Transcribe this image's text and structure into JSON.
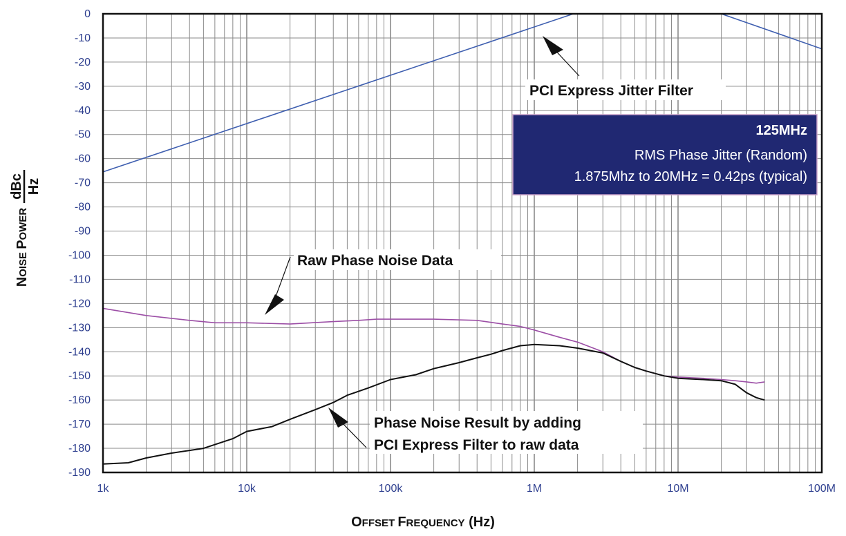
{
  "chart_data": {
    "type": "line",
    "xscale": "log",
    "xlim": [
      1000,
      100000000
    ],
    "ylim": [
      -190,
      0
    ],
    "grid": true,
    "xlabel_parts": [
      "O",
      "FFSET ",
      "F",
      "REQUENCY",
      " (Hz)"
    ],
    "ylabel_parts": [
      "N",
      "OISE ",
      "P",
      "OWER"
    ],
    "yunit_num": "dBc",
    "yunit_den": "Hz",
    "x_ticks": [
      {
        "value": 1000,
        "label": "1k"
      },
      {
        "value": 10000,
        "label": "10k"
      },
      {
        "value": 100000,
        "label": "100k"
      },
      {
        "value": 1000000,
        "label": "1M"
      },
      {
        "value": 10000000,
        "label": "10M"
      },
      {
        "value": 100000000,
        "label": "100M"
      }
    ],
    "y_ticks": [
      0,
      -10,
      -20,
      -30,
      -40,
      -50,
      -60,
      -70,
      -80,
      -90,
      -100,
      -110,
      -120,
      -130,
      -140,
      -150,
      -160,
      -170,
      -180,
      -190
    ],
    "colors": {
      "filter": "#3f5fb0",
      "raw": "#9c4fa6",
      "result": "#111111",
      "grid": "#8a8a8a",
      "infobox_bg": "#202872"
    },
    "series": [
      {
        "id": "filter",
        "x": [
          1000,
          1870000,
          20000000,
          100000000
        ],
        "y": [
          -65.5,
          0,
          0,
          -14.5
        ]
      },
      {
        "id": "raw",
        "x": [
          1000,
          2000,
          4000,
          6000,
          10000,
          20000,
          40000,
          60000,
          80000,
          100000,
          200000,
          400000,
          600000,
          800000,
          1000000,
          1500000,
          2000000,
          3000000,
          4000000,
          5000000,
          6000000,
          8000000,
          10000000,
          15000000,
          20000000,
          25000000,
          30000000,
          35000000,
          40000000
        ],
        "y": [
          -122,
          -125,
          -127,
          -128,
          -128,
          -128.5,
          -127.5,
          -127,
          -126.5,
          -126.5,
          -126.5,
          -127,
          -128.5,
          -129.5,
          -131,
          -134,
          -136,
          -140,
          -144,
          -146.5,
          -148,
          -150,
          -150.5,
          -151,
          -151.5,
          -152,
          -152.5,
          -153,
          -152.5
        ]
      },
      {
        "id": "result",
        "x": [
          1000,
          1500,
          2000,
          3000,
          5000,
          8000,
          10000,
          15000,
          20000,
          30000,
          40000,
          50000,
          70000,
          100000,
          150000,
          200000,
          300000,
          400000,
          500000,
          600000,
          800000,
          1000000,
          1500000,
          2000000,
          3000000,
          4000000,
          5000000,
          6000000,
          8000000,
          10000000,
          15000000,
          20000000,
          25000000,
          30000000,
          35000000,
          40000000
        ],
        "y": [
          -186.5,
          -186,
          -184,
          -182,
          -180,
          -176,
          -173,
          -171,
          -168,
          -164,
          -161,
          -158,
          -155,
          -151.5,
          -149.5,
          -147,
          -144.5,
          -142.5,
          -141,
          -139.5,
          -137.5,
          -137,
          -137.5,
          -138.5,
          -140.5,
          -144,
          -146.5,
          -148,
          -150,
          -151,
          -151.5,
          -152,
          -153.5,
          -157,
          -159,
          -160
        ]
      }
    ],
    "annotations": {
      "filter_label": "PCI Express Jitter Filter",
      "raw_label": "Raw Phase Noise Data",
      "result_line1": "Phase Noise Result by adding",
      "result_line2": "PCI Express Filter to raw data"
    },
    "infobox": {
      "title": "125MHz",
      "line1": "RMS Phase Jitter  (Random)",
      "line2": "1.875Mhz to 20MHz = 0.42ps (typical)"
    }
  }
}
